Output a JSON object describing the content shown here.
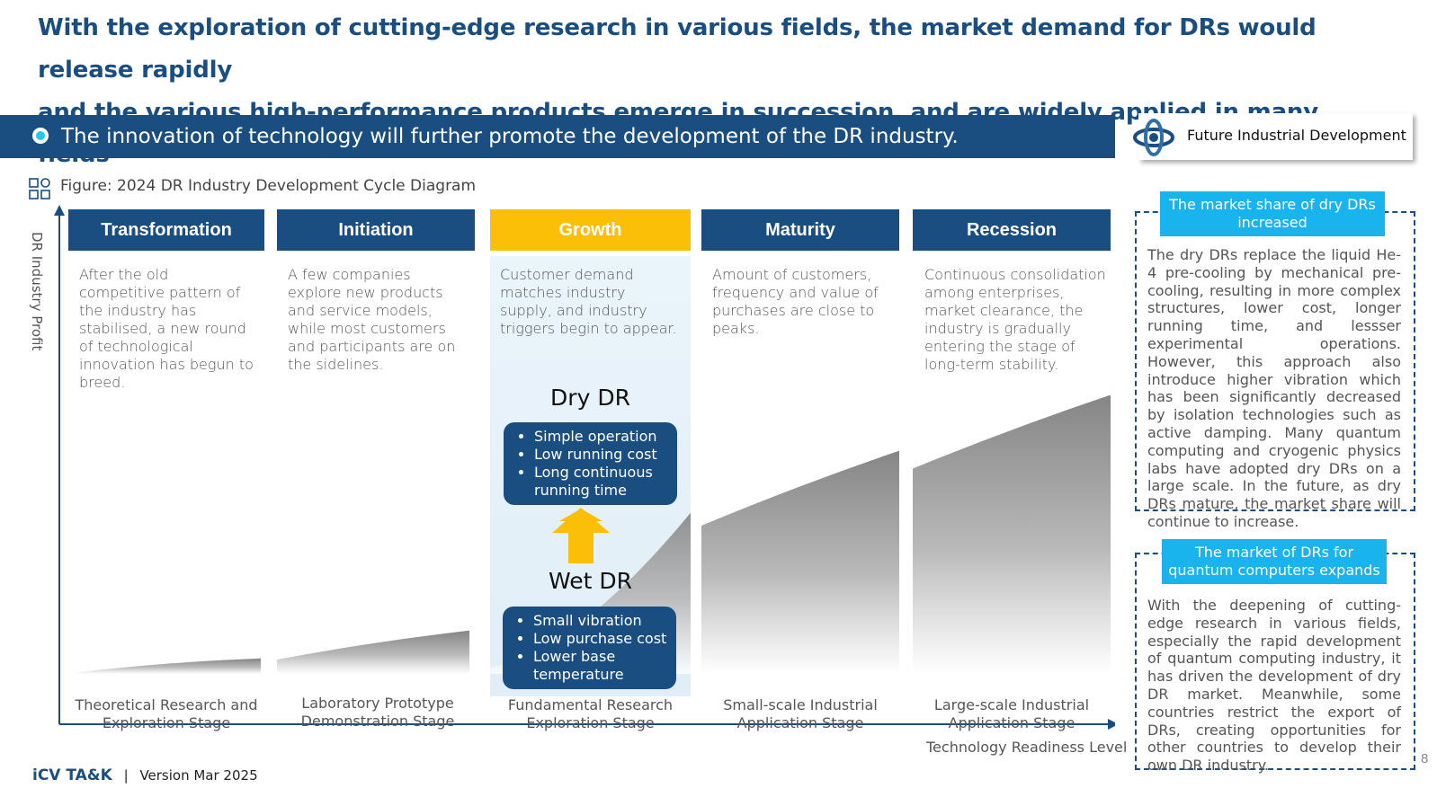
{
  "headline": {
    "line1": "With the exploration of cutting-edge research in various fields, the market demand for DRs would release rapidly",
    "line2": "and the various high-performance products emerge in succession, and are widely applied in many fields"
  },
  "banner": {
    "text": "The innovation of technology will further promote the development of the DR industry."
  },
  "future_badge": {
    "label": "Future Industrial Development"
  },
  "figure": {
    "caption": "Figure: 2024 DR Industry Development Cycle Diagram"
  },
  "axes": {
    "y_label": "DR Industry Profit",
    "x_label": "Technology Readiness Level"
  },
  "stages": [
    {
      "name": "Transformation",
      "description": "After the old competitive pattern of the industry has stabilised, a new round of technological innovation has begun to breed.",
      "label": "Theoretical Research and Exploration Stage",
      "profit_level": 0.05
    },
    {
      "name": "Initiation",
      "description": "A few companies explore new products and service models, while most customers and participants are on the sidelines.",
      "label": "Laboratory Prototype Demonstration Stage",
      "profit_level": 0.14
    },
    {
      "name": "Growth",
      "description": "Customer demand matches industry supply, and industry triggers begin to appear.",
      "label": "Fundamental Research Exploration Stage",
      "profit_level": 0.52
    },
    {
      "name": "Maturity",
      "description": "Amount of customers, frequency and value of purchases are close to peaks.",
      "label": "Small-scale Industrial Application Stage",
      "profit_level": 0.72
    },
    {
      "name": "Recession",
      "description": "Continuous consolidation among enterprises, market clearance, the industry is gradually entering the stage of long-term stability.",
      "label": "Large-scale Industrial Application Stage",
      "profit_level": 0.9
    }
  ],
  "dry_dr": {
    "title": "Dry DR",
    "points": [
      "Simple operation",
      "Low running cost",
      "Long continuous running time"
    ]
  },
  "wet_dr": {
    "title": "Wet DR",
    "points": [
      "Small vibration",
      "Low purchase cost",
      "Lower base temperature"
    ]
  },
  "side_panels": [
    {
      "tag": "The market share of dry DRs increased",
      "text": "The dry DRs replace the liquid He-4 pre-cooling by mechanical pre-cooling, resulting in more complex structures, lower cost, longer running time, and lessser experimental operations. However, this approach also introduce higher vibration which has been significantly decreased by isolation technologies such as active damping. Many quantum computing and cryogenic physics labs have adopted dry DRs on a large scale. In the future, as dry DRs mature, the market share will continue to increase."
    },
    {
      "tag": "The market of DRs for quantum computers expands",
      "text": "With the deepening of cutting-edge research in various fields, especially the rapid development of quantum computing industry, it has driven the development of dry DR market. Meanwhile, some countries restrict the export of DRs, creating opportunities for other countries to develop their own DR industry."
    }
  ],
  "footer": {
    "brand": "iCV TA&K",
    "separator": "|",
    "version": "Version Mar 2025"
  },
  "page_number": "8",
  "colors": {
    "primary": "#1a4e80",
    "accent_yellow": "#fcbf07",
    "accent_cyan": "#19b3ee"
  }
}
